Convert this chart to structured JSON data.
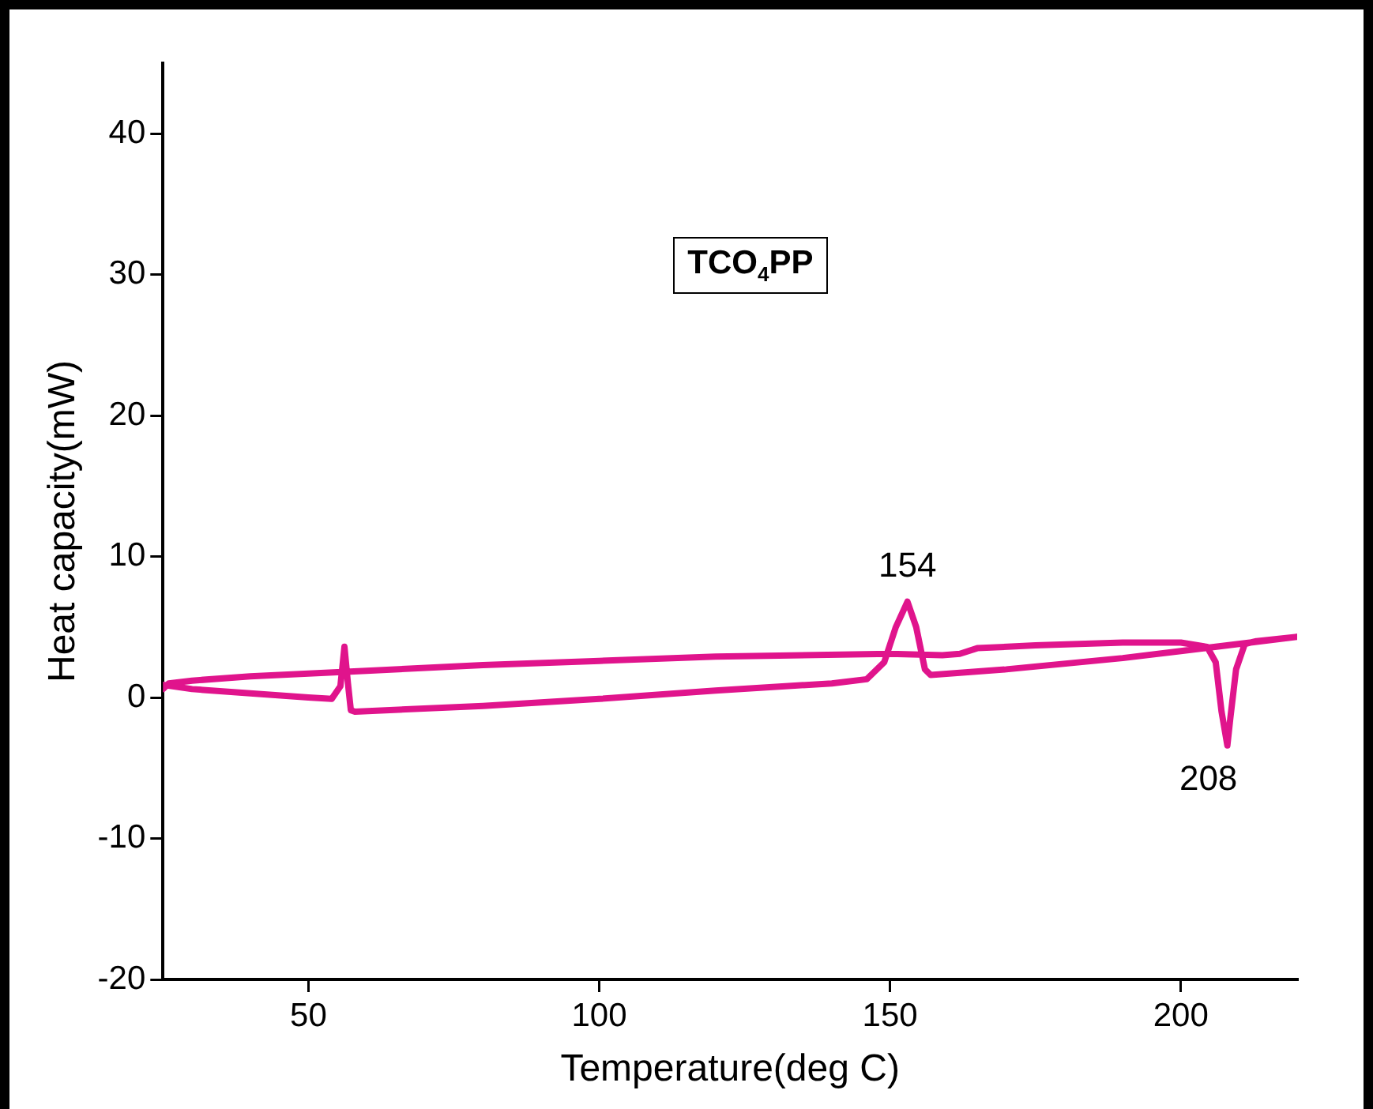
{
  "chart_data": {
    "type": "line",
    "xlabel": "Temperature(deg C)",
    "ylabel": "Heat capacity(mW)",
    "annotations": [
      "TCO$_{4}$PP",
      {
        "text": "154",
        "x": 153,
        "y": 6.8
      },
      {
        "text": "208",
        "x": 208,
        "y": -3.4
      }
    ],
    "xlim": [
      25,
      220
    ],
    "xticks": [
      50,
      100,
      150,
      200
    ],
    "ylim": [
      -20,
      45
    ],
    "yticks": [
      -20,
      -10,
      0,
      10,
      20,
      30,
      40
    ],
    "grid": false,
    "legend": false,
    "marker": "none",
    "line_style": "solid",
    "series": [
      {
        "color": "#e0148c",
        "x": [
          25,
          30,
          40,
          50,
          54,
          55.5,
          56.2,
          56.8,
          57.3,
          58,
          80,
          100,
          120,
          140,
          146,
          149,
          151,
          153,
          154.5,
          156,
          157,
          170,
          190,
          200,
          220,
          213,
          211,
          209.5,
          208.5,
          208,
          207,
          206,
          204.5,
          200,
          190,
          175,
          165,
          162,
          159,
          150,
          120,
          100,
          80,
          60,
          40,
          30,
          26,
          25
        ],
        "values": [
          0.9,
          0.6,
          0.3,
          0.0,
          -0.1,
          0.8,
          3.6,
          1,
          -0.9,
          -1.0,
          -0.6,
          -0.1,
          0.5,
          1.0,
          1.3,
          2.5,
          5,
          6.8,
          5,
          2,
          1.6,
          2.0,
          2.8,
          3.3,
          4.3,
          4.0,
          3.8,
          2,
          -1.5,
          -3.4,
          -1,
          2.5,
          3.6,
          3.9,
          3.9,
          3.7,
          3.5,
          3.1,
          3.0,
          3.1,
          2.9,
          2.6,
          2.3,
          1.9,
          1.5,
          1.2,
          1.0,
          0.6
        ]
      }
    ]
  }
}
